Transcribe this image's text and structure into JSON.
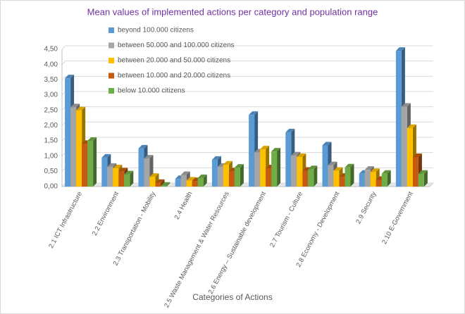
{
  "chart_data": {
    "type": "bar3d",
    "title": "Mean values of implemented actions per category and population range",
    "x_label": "Categories of Actions",
    "categories": [
      "2.1 ICT Infrastructure",
      "2.2 Environment",
      "2.3 Transportation - Mobility",
      "2.4 Health",
      "2.5 Waste Management & Water Resources",
      "2.6 Energy – Sustainable development",
      "2.7 Tourism - Culture",
      "2.8 Economy - Development",
      "2.9 Security",
      "2.10 E-Government"
    ],
    "series": [
      {
        "name": "beyond 100.000 citizens",
        "color": "#5b9bd5",
        "values": [
          3.55,
          0.95,
          1.25,
          0.25,
          0.88,
          2.35,
          1.78,
          1.35,
          0.42,
          4.45
        ]
      },
      {
        "name": "between 50.000 and 100.000 citizens",
        "color": "#a5a5a5",
        "values": [
          2.6,
          0.65,
          0.92,
          0.38,
          0.65,
          1.12,
          1.02,
          0.7,
          0.55,
          2.62
        ]
      },
      {
        "name": "between 20.000 and 50.000 citizens",
        "color": "#ffc000",
        "values": [
          2.5,
          0.6,
          0.32,
          0.2,
          0.72,
          1.22,
          0.97,
          0.52,
          0.48,
          1.92
        ]
      },
      {
        "name": "between 10.000 and 20.000 citizens",
        "color": "#c55a11",
        "values": [
          1.4,
          0.5,
          0.12,
          0.18,
          0.5,
          0.6,
          0.52,
          0.32,
          0.22,
          0.97
        ]
      },
      {
        "name": "below 10.000 citizens",
        "color": "#70ad47",
        "values": [
          1.5,
          0.4,
          0.03,
          0.28,
          0.62,
          1.15,
          0.57,
          0.63,
          0.42,
          0.42
        ]
      }
    ],
    "ylim": [
      0,
      4.5
    ],
    "yticks": [
      {
        "value": 0,
        "label": "0,00"
      },
      {
        "value": 0.5,
        "label": "0,50"
      },
      {
        "value": 1,
        "label": "1,00"
      },
      {
        "value": 1.5,
        "label": "1,50"
      },
      {
        "value": 2,
        "label": "2,00"
      },
      {
        "value": 2.5,
        "label": "2,50"
      },
      {
        "value": 3,
        "label": "3,00"
      },
      {
        "value": 3.5,
        "label": "3,50"
      },
      {
        "value": 4,
        "label": "4,00"
      },
      {
        "value": 4.5,
        "label": "4,50"
      }
    ],
    "grid": true
  }
}
